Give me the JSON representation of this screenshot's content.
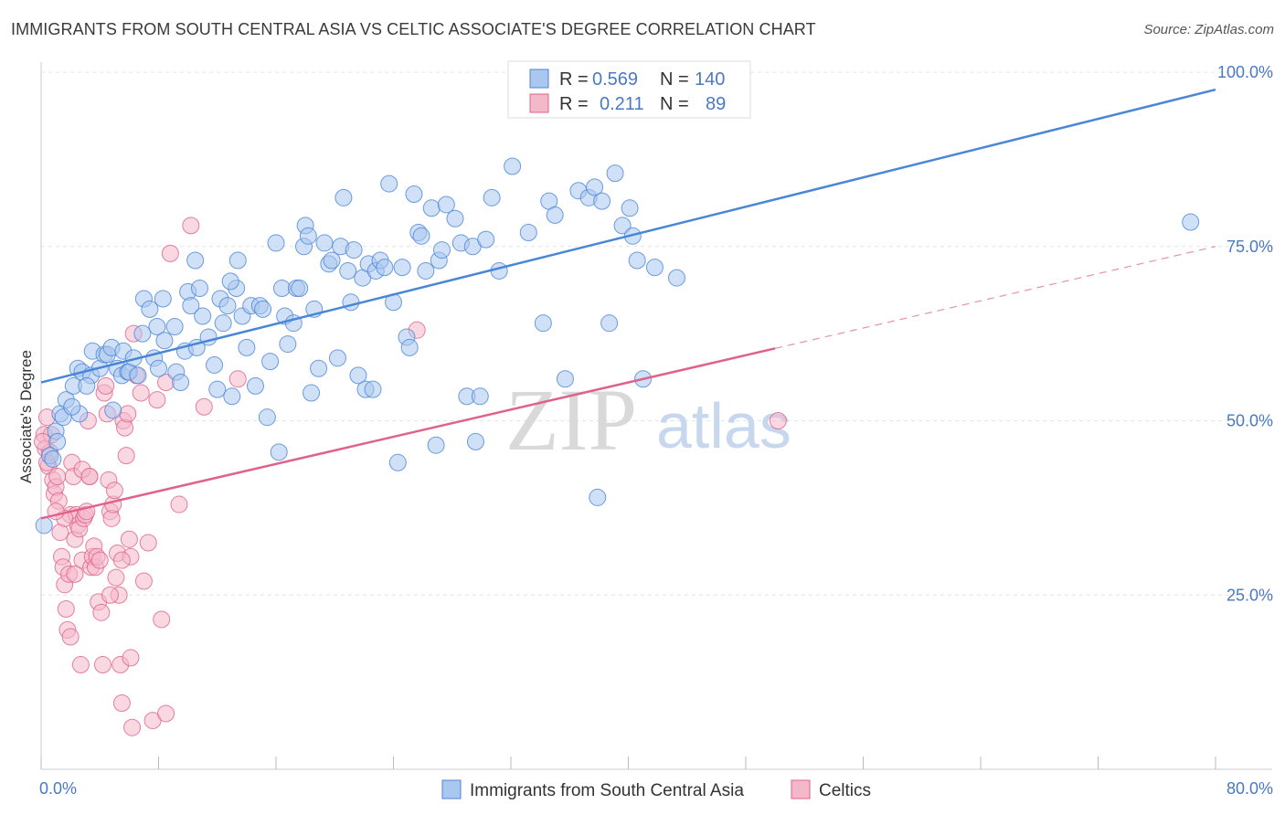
{
  "title": "IMMIGRANTS FROM SOUTH CENTRAL ASIA VS CELTIC ASSOCIATE'S DEGREE CORRELATION CHART",
  "source": "Source: ZipAtlas.com",
  "watermark": {
    "zip": "ZIP",
    "atlas": "atlas"
  },
  "colors": {
    "blue": "#4a86d8",
    "blue_fill": "#a9c7ef",
    "pink": "#e0628c",
    "pink_fill": "#f4b8cb",
    "tick": "#4a79c4"
  },
  "legend": {
    "rows": [
      {
        "r_label": "R =",
        "r_value": "0.569",
        "n_label": "N =",
        "n_value": "140"
      },
      {
        "r_label": "R =",
        "r_value": "0.211",
        "n_label": "N =",
        "n_value": "89"
      }
    ]
  },
  "chart_data": {
    "type": "scatter",
    "title": "IMMIGRANTS FROM SOUTH CENTRAL ASIA VS CELTIC ASSOCIATE'S DEGREE CORRELATION CHART",
    "xlabel": "",
    "ylabel": "Associate's Degree",
    "xlim": [
      0,
      80
    ],
    "ylim": [
      0,
      100
    ],
    "x_tick_labels": [
      "0.0%",
      "80.0%"
    ],
    "y_ticks": [
      25,
      50,
      75,
      100
    ],
    "y_tick_labels": [
      "25.0%",
      "50.0%",
      "75.0%",
      "100.0%"
    ],
    "grid": true,
    "legend_position": "top-center",
    "series": [
      {
        "name": "Immigrants from South Central Asia",
        "color": "#4a86d8",
        "R": 0.569,
        "N": 140,
        "trend": {
          "x": [
            0,
            80
          ],
          "y": [
            55.5,
            97.5
          ]
        },
        "points": [
          [
            0.6,
            45
          ],
          [
            0.8,
            44.5
          ],
          [
            1,
            48.5
          ],
          [
            1.3,
            51
          ],
          [
            1.5,
            50.5
          ],
          [
            1.7,
            53
          ],
          [
            2.2,
            55
          ],
          [
            2.5,
            57.5
          ],
          [
            2.6,
            51
          ],
          [
            2.8,
            57
          ],
          [
            3.4,
            56.5
          ],
          [
            3.5,
            60
          ],
          [
            4,
            57.5
          ],
          [
            4.3,
            59.5
          ],
          [
            4.5,
            59.5
          ],
          [
            4.8,
            60.5
          ],
          [
            4.9,
            51.5
          ],
          [
            5.2,
            57.5
          ],
          [
            5.5,
            56.5
          ],
          [
            5.6,
            60
          ],
          [
            5.9,
            57
          ],
          [
            6,
            57
          ],
          [
            6.6,
            56.5
          ],
          [
            6.9,
            62.5
          ],
          [
            7,
            67.5
          ],
          [
            7.4,
            66
          ],
          [
            7.7,
            59
          ],
          [
            7.9,
            63.5
          ],
          [
            8,
            57.5
          ],
          [
            8.3,
            67.5
          ],
          [
            8.4,
            61.5
          ],
          [
            9.1,
            63.5
          ],
          [
            9.2,
            57
          ],
          [
            9.5,
            55.5
          ],
          [
            9.8,
            60
          ],
          [
            10,
            68.5
          ],
          [
            10.2,
            66.5
          ],
          [
            10.5,
            73
          ],
          [
            10.6,
            60.5
          ],
          [
            10.8,
            69
          ],
          [
            11,
            65
          ],
          [
            11.4,
            62
          ],
          [
            11.8,
            58
          ],
          [
            12,
            54.5
          ],
          [
            12.2,
            67.5
          ],
          [
            12.4,
            64
          ],
          [
            12.7,
            66.5
          ],
          [
            13,
            53.5
          ],
          [
            13.3,
            69
          ],
          [
            13.4,
            73
          ],
          [
            13.7,
            65
          ],
          [
            14,
            60.5
          ],
          [
            14.3,
            66.5
          ],
          [
            14.6,
            55
          ],
          [
            14.9,
            66.5
          ],
          [
            15.1,
            66
          ],
          [
            15.4,
            50.5
          ],
          [
            15.6,
            58.5
          ],
          [
            16,
            75.5
          ],
          [
            16.2,
            45.5
          ],
          [
            16.4,
            69
          ],
          [
            16.6,
            65
          ],
          [
            16.8,
            61
          ],
          [
            17.2,
            64
          ],
          [
            17.4,
            69
          ],
          [
            17.6,
            69
          ],
          [
            17.9,
            75
          ],
          [
            18,
            78
          ],
          [
            18.2,
            76.5
          ],
          [
            18.4,
            54
          ],
          [
            18.6,
            66
          ],
          [
            18.9,
            57.5
          ],
          [
            19.3,
            75.5
          ],
          [
            19.6,
            72.5
          ],
          [
            19.8,
            73
          ],
          [
            20.2,
            59
          ],
          [
            20.4,
            75
          ],
          [
            20.6,
            82
          ],
          [
            20.9,
            71.5
          ],
          [
            21.1,
            67
          ],
          [
            21.3,
            74.5
          ],
          [
            21.6,
            56.5
          ],
          [
            21.9,
            70.5
          ],
          [
            22.1,
            54.5
          ],
          [
            22.3,
            72.5
          ],
          [
            22.6,
            54.5
          ],
          [
            22.8,
            71.5
          ],
          [
            23.1,
            73
          ],
          [
            23.4,
            72
          ],
          [
            23.7,
            84
          ],
          [
            24,
            67
          ],
          [
            24.3,
            44
          ],
          [
            24.6,
            72
          ],
          [
            24.9,
            62
          ],
          [
            25.1,
            60.5
          ],
          [
            25.4,
            82.5
          ],
          [
            25.7,
            77
          ],
          [
            25.9,
            76.5
          ],
          [
            26.2,
            71.5
          ],
          [
            26.6,
            80.5
          ],
          [
            26.9,
            46.5
          ],
          [
            27.1,
            73
          ],
          [
            27.3,
            74.5
          ],
          [
            27.6,
            81
          ],
          [
            28.2,
            79
          ],
          [
            28.6,
            75.5
          ],
          [
            29,
            53.5
          ],
          [
            29.4,
            75
          ],
          [
            29.6,
            47
          ],
          [
            29.9,
            53.5
          ],
          [
            30.3,
            76
          ],
          [
            30.7,
            82
          ],
          [
            31.2,
            71.5
          ],
          [
            32.1,
            86.5
          ],
          [
            33.2,
            77
          ],
          [
            34.2,
            64
          ],
          [
            34.6,
            81.5
          ],
          [
            35,
            79.5
          ],
          [
            35.7,
            56
          ],
          [
            36.6,
            83
          ],
          [
            37.3,
            82
          ],
          [
            37.7,
            83.5
          ],
          [
            37.9,
            39
          ],
          [
            38.2,
            81.5
          ],
          [
            38.7,
            64
          ],
          [
            39.1,
            85.5
          ],
          [
            39.6,
            78
          ],
          [
            40.1,
            80.5
          ],
          [
            40.3,
            76.5
          ],
          [
            40.6,
            73
          ],
          [
            41,
            56
          ],
          [
            41.8,
            72
          ],
          [
            43.3,
            70.5
          ],
          [
            78.3,
            78.5
          ],
          [
            0.2,
            35
          ],
          [
            1.1,
            47
          ],
          [
            2.1,
            52
          ],
          [
            3.1,
            55
          ],
          [
            6.3,
            59
          ],
          [
            12.9,
            70
          ]
        ]
      },
      {
        "name": "Celtics",
        "color": "#e0628c",
        "R": 0.211,
        "N": 89,
        "trend": {
          "x": [
            0,
            80
          ],
          "y": [
            36,
            75
          ]
        },
        "trend_solid_to_x": 50,
        "points": [
          [
            0.2,
            48
          ],
          [
            0.3,
            46
          ],
          [
            0.4,
            50.5
          ],
          [
            0.5,
            43.5
          ],
          [
            0.6,
            45.5
          ],
          [
            0.7,
            48
          ],
          [
            0.8,
            41.5
          ],
          [
            0.9,
            39.5
          ],
          [
            1,
            40.5
          ],
          [
            1.1,
            42
          ],
          [
            1.2,
            38.5
          ],
          [
            1.3,
            34
          ],
          [
            1.4,
            30.5
          ],
          [
            1.5,
            29
          ],
          [
            1.6,
            26.5
          ],
          [
            1.7,
            23
          ],
          [
            1.8,
            20
          ],
          [
            1.9,
            28
          ],
          [
            2,
            36.5
          ],
          [
            2.1,
            44
          ],
          [
            2.2,
            42
          ],
          [
            2.3,
            33
          ],
          [
            2.4,
            36.5
          ],
          [
            2.5,
            35
          ],
          [
            2.6,
            34.5
          ],
          [
            2.7,
            15
          ],
          [
            2.8,
            30
          ],
          [
            2.9,
            36
          ],
          [
            3,
            36.5
          ],
          [
            3.1,
            37
          ],
          [
            3.2,
            50
          ],
          [
            3.3,
            42
          ],
          [
            3.4,
            29
          ],
          [
            3.5,
            30.5
          ],
          [
            3.6,
            32
          ],
          [
            3.7,
            29
          ],
          [
            3.8,
            30.5
          ],
          [
            3.9,
            24
          ],
          [
            4,
            30
          ],
          [
            4.1,
            22.5
          ],
          [
            4.2,
            15
          ],
          [
            4.3,
            54
          ],
          [
            4.4,
            55
          ],
          [
            4.5,
            51
          ],
          [
            4.6,
            41.5
          ],
          [
            4.7,
            37
          ],
          [
            4.8,
            36
          ],
          [
            4.9,
            38
          ],
          [
            5,
            40
          ],
          [
            5.1,
            27.5
          ],
          [
            5.2,
            31
          ],
          [
            5.3,
            25
          ],
          [
            5.4,
            15
          ],
          [
            5.5,
            9.5
          ],
          [
            5.6,
            50
          ],
          [
            5.7,
            49
          ],
          [
            5.8,
            45
          ],
          [
            5.9,
            51
          ],
          [
            6,
            33
          ],
          [
            6.1,
            30.5
          ],
          [
            6.2,
            6
          ],
          [
            6.3,
            62.5
          ],
          [
            6.5,
            56.5
          ],
          [
            6.8,
            54
          ],
          [
            7,
            27
          ],
          [
            7.3,
            32.5
          ],
          [
            7.6,
            7
          ],
          [
            7.9,
            53
          ],
          [
            8.2,
            21.5
          ],
          [
            8.5,
            55.5
          ],
          [
            8.8,
            74
          ],
          [
            9.4,
            38
          ],
          [
            10.2,
            78
          ],
          [
            11.1,
            52
          ],
          [
            13.4,
            56
          ],
          [
            25.6,
            63
          ],
          [
            50.2,
            50
          ],
          [
            0.1,
            47
          ],
          [
            0.4,
            44
          ],
          [
            1.6,
            36
          ],
          [
            2,
            19
          ],
          [
            2.8,
            43
          ],
          [
            3.3,
            42
          ],
          [
            4.7,
            25
          ],
          [
            5.5,
            30
          ],
          [
            6.1,
            16
          ],
          [
            8.5,
            8
          ],
          [
            1,
            37
          ],
          [
            2.3,
            28
          ]
        ]
      }
    ]
  },
  "bottom_legend": [
    {
      "label": "Immigrants from South Central Asia"
    },
    {
      "label": "Celtics"
    }
  ]
}
